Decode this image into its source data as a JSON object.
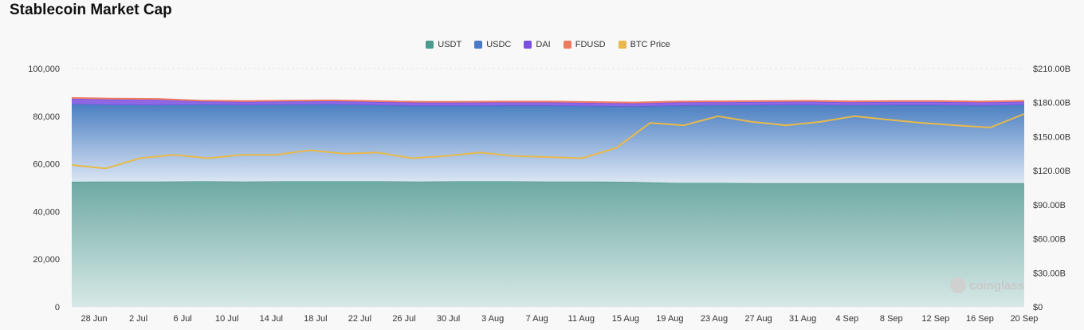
{
  "title": "Stablecoin Market Cap",
  "watermark": "coinglass",
  "chart_data": {
    "type": "area",
    "title": "Stablecoin Market Cap",
    "x_tick_labels": [
      "28 Jun",
      "2 Jul",
      "6 Jul",
      "10 Jul",
      "14 Jul",
      "18 Jul",
      "22 Jul",
      "26 Jul",
      "30 Jul",
      "3 Aug",
      "7 Aug",
      "11 Aug",
      "15 Aug",
      "19 Aug",
      "23 Aug",
      "27 Aug",
      "31 Aug",
      "4 Sep",
      "8 Sep",
      "12 Sep",
      "16 Sep",
      "20 Sep"
    ],
    "y_left": {
      "ylim": [
        0,
        100000
      ],
      "ticks": [
        "0",
        "20,000",
        "40,000",
        "60,000",
        "80,000",
        "100,000"
      ]
    },
    "y_right": {
      "ylim": [
        0,
        210
      ],
      "unit": "B",
      "ticks": [
        "$0",
        "$30.00B",
        "$60.00B",
        "$90.00B",
        "$120.00B",
        "$150.00B",
        "$180.00B",
        "$210.00B"
      ]
    },
    "legend_position": "top-center",
    "grid": true,
    "series": [
      {
        "name": "USDT",
        "color": "#4a9a8e",
        "kind": "stacked-area",
        "axis": "left",
        "values": [
          52.5,
          52.6,
          52.6,
          52.7,
          52.6,
          52.7,
          52.7,
          52.7,
          52.6,
          52.7,
          52.7,
          52.6,
          52.6,
          52.4,
          52.0,
          52.0,
          51.9,
          51.9,
          51.9,
          51.9,
          51.9,
          51.9,
          51.9
        ]
      },
      {
        "name": "USDC",
        "color": "#4a7ac8",
        "kind": "stacked-area",
        "axis": "left",
        "values": [
          32.5,
          32.1,
          32.0,
          32.1,
          32.0,
          32.1,
          32.2,
          31.9,
          31.7,
          31.6,
          31.7,
          31.8,
          31.6,
          31.6,
          32.4,
          32.5,
          32.7,
          32.8,
          32.6,
          32.7,
          32.7,
          32.5,
          32.8
        ]
      },
      {
        "name": "DAI",
        "color": "#7b4fe0",
        "kind": "stacked-area",
        "axis": "left",
        "values": [
          2.3,
          2.3,
          2.3,
          1.4,
          1.4,
          1.4,
          1.4,
          1.4,
          1.4,
          1.4,
          1.4,
          1.4,
          1.4,
          1.4,
          1.4,
          1.4,
          1.4,
          1.4,
          1.4,
          1.4,
          1.4,
          1.4,
          1.4
        ]
      },
      {
        "name": "FDUSD",
        "color": "#f07a60",
        "kind": "stacked-area",
        "axis": "left",
        "values": [
          0.5,
          0.5,
          0.5,
          0.5,
          0.5,
          0.5,
          0.5,
          0.5,
          0.5,
          0.5,
          0.5,
          0.5,
          0.5,
          0.5,
          0.5,
          0.5,
          0.5,
          0.5,
          0.5,
          0.5,
          0.5,
          0.5,
          0.5
        ]
      },
      {
        "name": "BTC Price",
        "color": "#e8b94a",
        "kind": "line",
        "axis": "right",
        "values": [
          125,
          122,
          131,
          134,
          131,
          134,
          134,
          138,
          135,
          136,
          131,
          133,
          136,
          133,
          132,
          131,
          140,
          162,
          160,
          168,
          163,
          160,
          163,
          168,
          165,
          162,
          160,
          158,
          170
        ]
      }
    ]
  }
}
